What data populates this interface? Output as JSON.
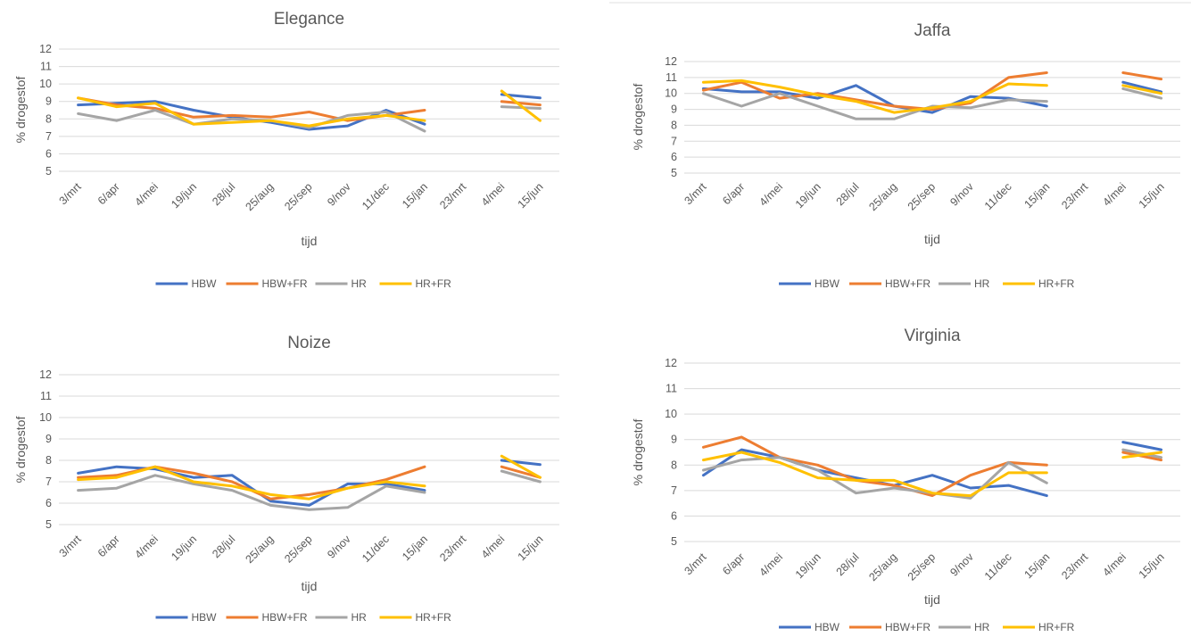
{
  "chart_data": [
    {
      "type": "line",
      "title": "Elegance",
      "xlabel": "tijd",
      "ylabel": "% drogestof",
      "ylim": [
        5,
        12
      ],
      "categories": [
        "3/mrt",
        "6/apr",
        "4/mei",
        "19/jun",
        "28/jul",
        "25/aug",
        "25/sep",
        "9/nov",
        "11/dec",
        "15/jan",
        "23/mrt",
        "4/mei",
        "15/jun"
      ],
      "series": [
        {
          "name": "HBW",
          "color": "#4472c4",
          "values": [
            8.8,
            8.9,
            9.0,
            8.5,
            8.1,
            7.8,
            7.4,
            7.6,
            8.5,
            7.7,
            null,
            9.4,
            9.2
          ]
        },
        {
          "name": "HBW+FR",
          "color": "#ed7d31",
          "values": [
            9.2,
            8.8,
            8.6,
            8.1,
            8.2,
            8.1,
            8.4,
            7.9,
            8.2,
            8.5,
            null,
            9.0,
            8.8
          ]
        },
        {
          "name": "HR",
          "color": "#a5a5a5",
          "values": [
            8.3,
            7.9,
            8.5,
            7.7,
            8.0,
            7.9,
            7.5,
            8.2,
            8.4,
            7.3,
            null,
            8.7,
            8.6
          ]
        },
        {
          "name": "HR+FR",
          "color": "#ffc000",
          "values": [
            9.2,
            8.7,
            8.9,
            7.7,
            7.8,
            7.9,
            7.6,
            8.0,
            8.2,
            7.9,
            null,
            9.6,
            7.9
          ]
        }
      ]
    },
    {
      "type": "line",
      "title": "Jaffa",
      "xlabel": "tijd",
      "ylabel": "% drogestof",
      "ylim": [
        5,
        12
      ],
      "categories": [
        "3/mrt",
        "6/apr",
        "4/mei",
        "19/jun",
        "28/jul",
        "25/aug",
        "25/sep",
        "9/nov",
        "11/dec",
        "15/jan",
        "23/mrt",
        "4/mei",
        "15/jun"
      ],
      "series": [
        {
          "name": "HBW",
          "color": "#4472c4",
          "values": [
            10.3,
            10.1,
            10.1,
            9.7,
            10.5,
            9.2,
            8.8,
            9.8,
            9.7,
            9.2,
            null,
            10.7,
            10.1
          ]
        },
        {
          "name": "HBW+FR",
          "color": "#ed7d31",
          "values": [
            10.2,
            10.7,
            9.7,
            10.0,
            9.6,
            9.2,
            9.0,
            9.4,
            11.0,
            11.3,
            null,
            11.3,
            10.9
          ]
        },
        {
          "name": "HR",
          "color": "#a5a5a5",
          "values": [
            10.0,
            9.2,
            10.0,
            9.2,
            8.4,
            8.4,
            9.2,
            9.1,
            9.6,
            9.5,
            null,
            10.3,
            9.7
          ]
        },
        {
          "name": "HR+FR",
          "color": "#ffc000",
          "values": [
            10.7,
            10.8,
            10.4,
            9.9,
            9.5,
            8.8,
            9.1,
            9.5,
            10.6,
            10.5,
            null,
            10.5,
            10.0
          ]
        }
      ]
    },
    {
      "type": "line",
      "title": "Noize",
      "xlabel": "tijd",
      "ylabel": "% drogestof",
      "ylim": [
        5,
        12
      ],
      "categories": [
        "3/mrt",
        "6/apr",
        "4/mei",
        "19/jun",
        "28/jul",
        "25/aug",
        "25/sep",
        "9/nov",
        "11/dec",
        "15/jan",
        "23/mrt",
        "4/mei",
        "15/jun"
      ],
      "series": [
        {
          "name": "HBW",
          "color": "#4472c4",
          "values": [
            7.4,
            7.7,
            7.6,
            7.2,
            7.3,
            6.1,
            5.9,
            6.9,
            6.9,
            6.6,
            null,
            8.0,
            7.8
          ]
        },
        {
          "name": "HBW+FR",
          "color": "#ed7d31",
          "values": [
            7.2,
            7.3,
            7.7,
            7.4,
            7.0,
            6.2,
            6.4,
            6.7,
            7.1,
            7.7,
            null,
            7.7,
            7.2
          ]
        },
        {
          "name": "HR",
          "color": "#a5a5a5",
          "values": [
            6.6,
            6.7,
            7.3,
            6.9,
            6.6,
            5.9,
            5.7,
            5.8,
            6.8,
            6.5,
            null,
            7.5,
            7.0
          ]
        },
        {
          "name": "HR+FR",
          "color": "#ffc000",
          "values": [
            7.1,
            7.2,
            7.7,
            7.0,
            6.8,
            6.4,
            6.2,
            6.7,
            7.0,
            6.8,
            null,
            8.2,
            7.2
          ]
        }
      ]
    },
    {
      "type": "line",
      "title": "Virginia",
      "xlabel": "tijd",
      "ylabel": "% drogestof",
      "ylim": [
        5,
        12
      ],
      "categories": [
        "3/mrt",
        "6/apr",
        "4/mei",
        "19/jun",
        "28/jul",
        "25/aug",
        "25/sep",
        "9/nov",
        "11/dec",
        "15/jan",
        "23/mrt",
        "4/mei",
        "15/jun"
      ],
      "series": [
        {
          "name": "HBW",
          "color": "#4472c4",
          "values": [
            7.6,
            8.6,
            8.3,
            7.8,
            7.5,
            7.2,
            7.6,
            7.1,
            7.2,
            6.8,
            null,
            8.9,
            8.6
          ]
        },
        {
          "name": "HBW+FR",
          "color": "#ed7d31",
          "values": [
            8.7,
            9.1,
            8.3,
            8.0,
            7.4,
            7.2,
            6.8,
            7.6,
            8.1,
            8.0,
            null,
            8.5,
            8.2
          ]
        },
        {
          "name": "HR",
          "color": "#a5a5a5",
          "values": [
            7.8,
            8.2,
            8.3,
            7.8,
            6.9,
            7.1,
            6.9,
            6.7,
            8.1,
            7.3,
            null,
            8.6,
            8.3
          ]
        },
        {
          "name": "HR+FR",
          "color": "#ffc000",
          "values": [
            8.2,
            8.5,
            8.1,
            7.5,
            7.4,
            7.4,
            6.9,
            6.8,
            7.7,
            7.7,
            null,
            8.3,
            8.5
          ]
        }
      ]
    }
  ]
}
